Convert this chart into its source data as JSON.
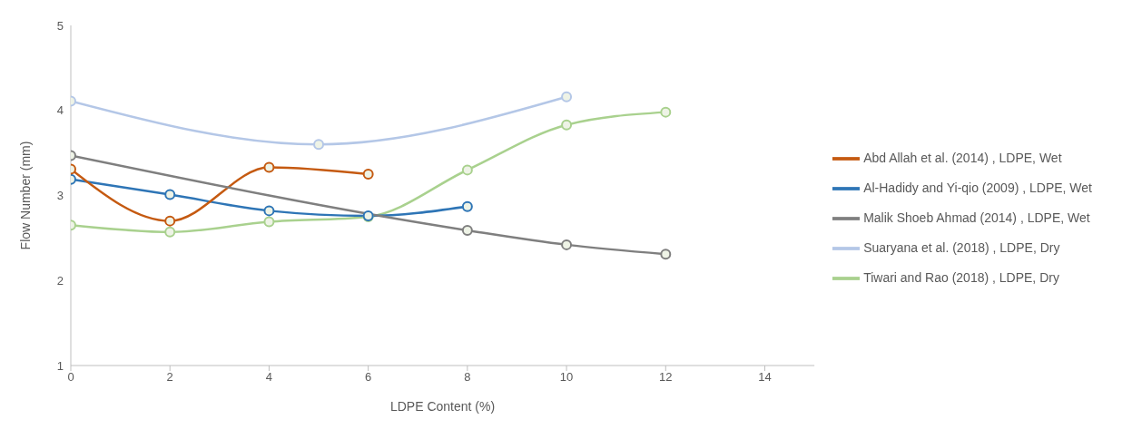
{
  "chart_data": {
    "type": "line",
    "xlabel": "LDPE Content (%)",
    "ylabel": "Flow Number (mm)",
    "xlim": [
      0,
      15
    ],
    "xticks": [
      0,
      2,
      4,
      6,
      8,
      10,
      12,
      14
    ],
    "ylim": [
      1,
      5
    ],
    "yticks": [
      1,
      2,
      3,
      4,
      5
    ],
    "grid": false,
    "legend": "right",
    "marker": "circle",
    "line_style": "solid",
    "series": [
      {
        "name": "Tiwari and Rao (2018) , LDPE, Dry",
        "color": "#a9d18e",
        "x": [
          0,
          2,
          4,
          6,
          8,
          10,
          12
        ],
        "values": [
          2.65,
          2.57,
          2.69,
          2.75,
          3.3,
          3.83,
          3.98
        ]
      },
      {
        "name": "Al-Hadidy and Yi-qio (2009) , LDPE, Wet",
        "color": "#2e75b6",
        "x": [
          0,
          2,
          4,
          6,
          8
        ],
        "values": [
          3.19,
          3.01,
          2.82,
          2.76,
          2.87
        ]
      },
      {
        "name": "Abd Allah et al. (2014) , LDPE, Wet",
        "color": "#c55a11",
        "x": [
          0,
          2,
          4,
          6
        ],
        "values": [
          3.31,
          2.7,
          3.33,
          3.25
        ]
      },
      {
        "name": "Malik Shoeb Ahmad (2014) , LDPE, Wet",
        "color": "#7f7f7f",
        "x": [
          0,
          8,
          10,
          12
        ],
        "values": [
          3.47,
          2.59,
          2.42,
          2.31
        ]
      },
      {
        "name": "Suaryana et al. (2018) , LDPE, Dry",
        "color": "#b4c7e7",
        "x": [
          0,
          5,
          10
        ],
        "values": [
          4.11,
          3.6,
          4.16
        ]
      }
    ]
  }
}
